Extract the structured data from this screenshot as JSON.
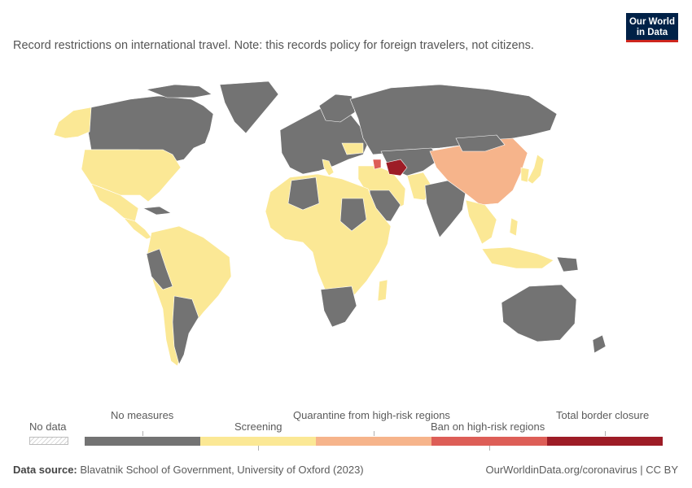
{
  "subtitle": "Record restrictions on international travel. Note: this records policy for foreign travelers, not citizens.",
  "logo": {
    "line1": "Our World",
    "line2": "in Data"
  },
  "legend": {
    "no_data": "No data",
    "categories": [
      {
        "label": "No measures",
        "color": "#737373"
      },
      {
        "label": "Screening",
        "color": "#fbe895"
      },
      {
        "label": "Quarantine from high-risk regions",
        "color": "#f6b48b"
      },
      {
        "label": "Ban on high-risk regions",
        "color": "#dd5e57"
      },
      {
        "label": "Total border closure",
        "color": "#9d1c26"
      }
    ]
  },
  "map_regions": [
    {
      "region": "Canada",
      "category": "No measures"
    },
    {
      "region": "United States",
      "category": "Screening"
    },
    {
      "region": "Alaska",
      "category": "Screening"
    },
    {
      "region": "Greenland",
      "category": "No measures"
    },
    {
      "region": "Mexico",
      "category": "Screening"
    },
    {
      "region": "Central America",
      "category": "Screening"
    },
    {
      "region": "South America",
      "category": "Screening"
    },
    {
      "region": "Peru",
      "category": "No measures"
    },
    {
      "region": "Argentina",
      "category": "No measures"
    },
    {
      "region": "Europe",
      "category": "No measures"
    },
    {
      "region": "Russia",
      "category": "No measures"
    },
    {
      "region": "China",
      "category": "Quarantine from high-risk regions"
    },
    {
      "region": "Turkmenistan",
      "category": "Total border closure"
    },
    {
      "region": "Azerbaijan",
      "category": "Ban on high-risk regions"
    },
    {
      "region": "India",
      "category": "No measures"
    },
    {
      "region": "Southeast Asia",
      "category": "Screening"
    },
    {
      "region": "Japan",
      "category": "Screening"
    },
    {
      "region": "Australia",
      "category": "No measures"
    },
    {
      "region": "Africa",
      "category": "Screening"
    },
    {
      "region": "Southern Africa",
      "category": "No measures"
    },
    {
      "region": "Indonesia",
      "category": "Screening"
    },
    {
      "region": "Papua New Guinea",
      "category": "No measures"
    }
  ],
  "footer": {
    "source_label": "Data source:",
    "source_text": " Blavatnik School of Government, University of Oxford (2023)",
    "right_text": "OurWorldinData.org/coronavirus | CC BY"
  }
}
